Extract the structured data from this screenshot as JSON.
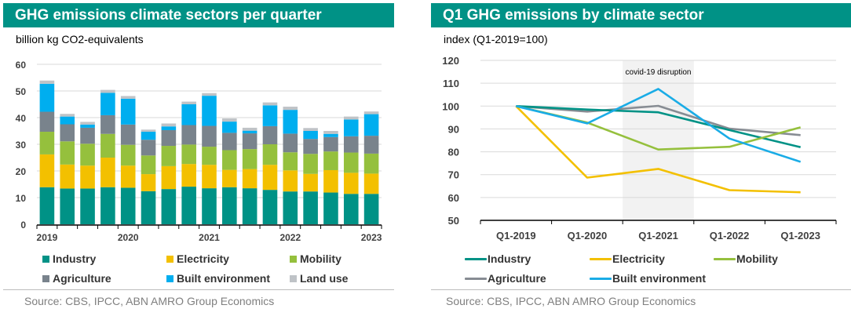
{
  "left": {
    "title": "GHG emissions climate sectors per quarter",
    "subtitle": "billion kg CO2-equivalents",
    "source": "Source: CBS, IPCC, ABN AMRO Group Economics",
    "legend": [
      {
        "name": "Industry",
        "color": "#009286"
      },
      {
        "name": "Electricity",
        "color": "#F3C000"
      },
      {
        "name": "Mobility",
        "color": "#95C03D"
      },
      {
        "name": "Agriculture",
        "color": "#79838C"
      },
      {
        "name": "Built environment",
        "color": "#00AEEF"
      },
      {
        "name": "Land use",
        "color": "#BFC3C7"
      }
    ]
  },
  "right": {
    "title": "Q1 GHG emissions by climate sector",
    "subtitle": "index (Q1-2019=100)",
    "source": "Source: CBS, IPCC, ABN AMRO Group Economics",
    "annotation": "covid-19 disruption",
    "legend": [
      {
        "name": "Industry",
        "color": "#009286"
      },
      {
        "name": "Electricity",
        "color": "#F3C000"
      },
      {
        "name": "Mobility",
        "color": "#95C03D"
      },
      {
        "name": "Agriculture",
        "color": "#878C93"
      },
      {
        "name": "Built environment",
        "color": "#1AACE6"
      }
    ]
  },
  "chart_data": [
    {
      "type": "bar",
      "stacked": true,
      "title": "GHG emissions climate sectors per quarter",
      "ylabel": "billion kg CO2-equivalents",
      "xlabel": "",
      "ylim": [
        0,
        60
      ],
      "yticks": [
        0,
        10,
        20,
        30,
        40,
        50,
        60
      ],
      "grid": true,
      "legend_position": "bottom",
      "categories": [
        "2019Q1",
        "2019Q2",
        "2019Q3",
        "2019Q4",
        "2020Q1",
        "2020Q2",
        "2020Q3",
        "2020Q4",
        "2021Q1",
        "2021Q2",
        "2021Q3",
        "2021Q4",
        "2022Q1",
        "2022Q2",
        "2022Q3",
        "2022Q4",
        "2023Q1"
      ],
      "xtick_labels": [
        {
          "index": 0,
          "label": "2019"
        },
        {
          "index": 4,
          "label": "2020"
        },
        {
          "index": 8,
          "label": "2021"
        },
        {
          "index": 12,
          "label": "2022"
        },
        {
          "index": 16,
          "label": "2023"
        }
      ],
      "series": [
        {
          "name": "Industry",
          "values": [
            13.9,
            13.4,
            13.4,
            13.9,
            13.7,
            12.4,
            13.2,
            14.1,
            13.5,
            13.9,
            13.5,
            12.9,
            12.3,
            12.3,
            11.9,
            11.4,
            11.4
          ]
        },
        {
          "name": "Electricity",
          "values": [
            12.3,
            9.0,
            8.6,
            11.1,
            8.3,
            6.4,
            8.6,
            8.5,
            8.8,
            6.5,
            7.2,
            9.4,
            7.9,
            6.6,
            8.4,
            7.9,
            7.6
          ]
        },
        {
          "name": "Mobility",
          "values": [
            8.5,
            8.7,
            8.2,
            8.9,
            7.8,
            7.0,
            7.6,
            7.3,
            6.8,
            7.4,
            7.5,
            7.7,
            6.8,
            7.5,
            7.0,
            7.6,
            7.5
          ]
        },
        {
          "name": "Agriculture",
          "values": [
            7.5,
            6.4,
            6.0,
            7.0,
            7.6,
            5.9,
            5.9,
            7.3,
            7.8,
            6.5,
            5.9,
            6.8,
            7.0,
            5.6,
            5.4,
            6.1,
            6.7
          ]
        },
        {
          "name": "Built environment",
          "values": [
            10.5,
            2.9,
            1.2,
            8.4,
            9.7,
            3.0,
            1.4,
            7.8,
            11.3,
            4.2,
            1.0,
            7.8,
            8.9,
            3.0,
            1.2,
            6.3,
            8.1
          ]
        },
        {
          "name": "Land use",
          "values": [
            1.2,
            1.0,
            1.0,
            1.1,
            1.0,
            0.8,
            1.1,
            1.0,
            1.0,
            1.2,
            1.1,
            1.1,
            1.2,
            1.1,
            1.1,
            1.1,
            1.0
          ]
        }
      ]
    },
    {
      "type": "line",
      "title": "Q1 GHG emissions by climate sector",
      "ylabel": "index (Q1-2019=100)",
      "xlabel": "",
      "ylim": [
        50,
        120
      ],
      "yticks": [
        50,
        60,
        70,
        80,
        90,
        100,
        110,
        120
      ],
      "grid": true,
      "legend_position": "bottom",
      "categories": [
        "Q1-2019",
        "Q1-2020",
        "Q1-2021",
        "Q1-2022",
        "Q1-2023"
      ],
      "annotations": [
        {
          "text": "covid-19 disruption",
          "shaded_category": "Q1-2021"
        }
      ],
      "series": [
        {
          "name": "Industry",
          "values": [
            100,
            98.5,
            97.3,
            89.5,
            82.0
          ]
        },
        {
          "name": "Electricity",
          "values": [
            100,
            68.7,
            72.5,
            63.2,
            62.3
          ]
        },
        {
          "name": "Mobility",
          "values": [
            100,
            92.8,
            81.0,
            82.2,
            90.7
          ]
        },
        {
          "name": "Agriculture",
          "values": [
            100,
            97.6,
            100.1,
            90.1,
            87.3
          ]
        },
        {
          "name": "Built environment",
          "values": [
            100,
            92.4,
            107.5,
            85.8,
            75.6
          ]
        }
      ]
    }
  ]
}
